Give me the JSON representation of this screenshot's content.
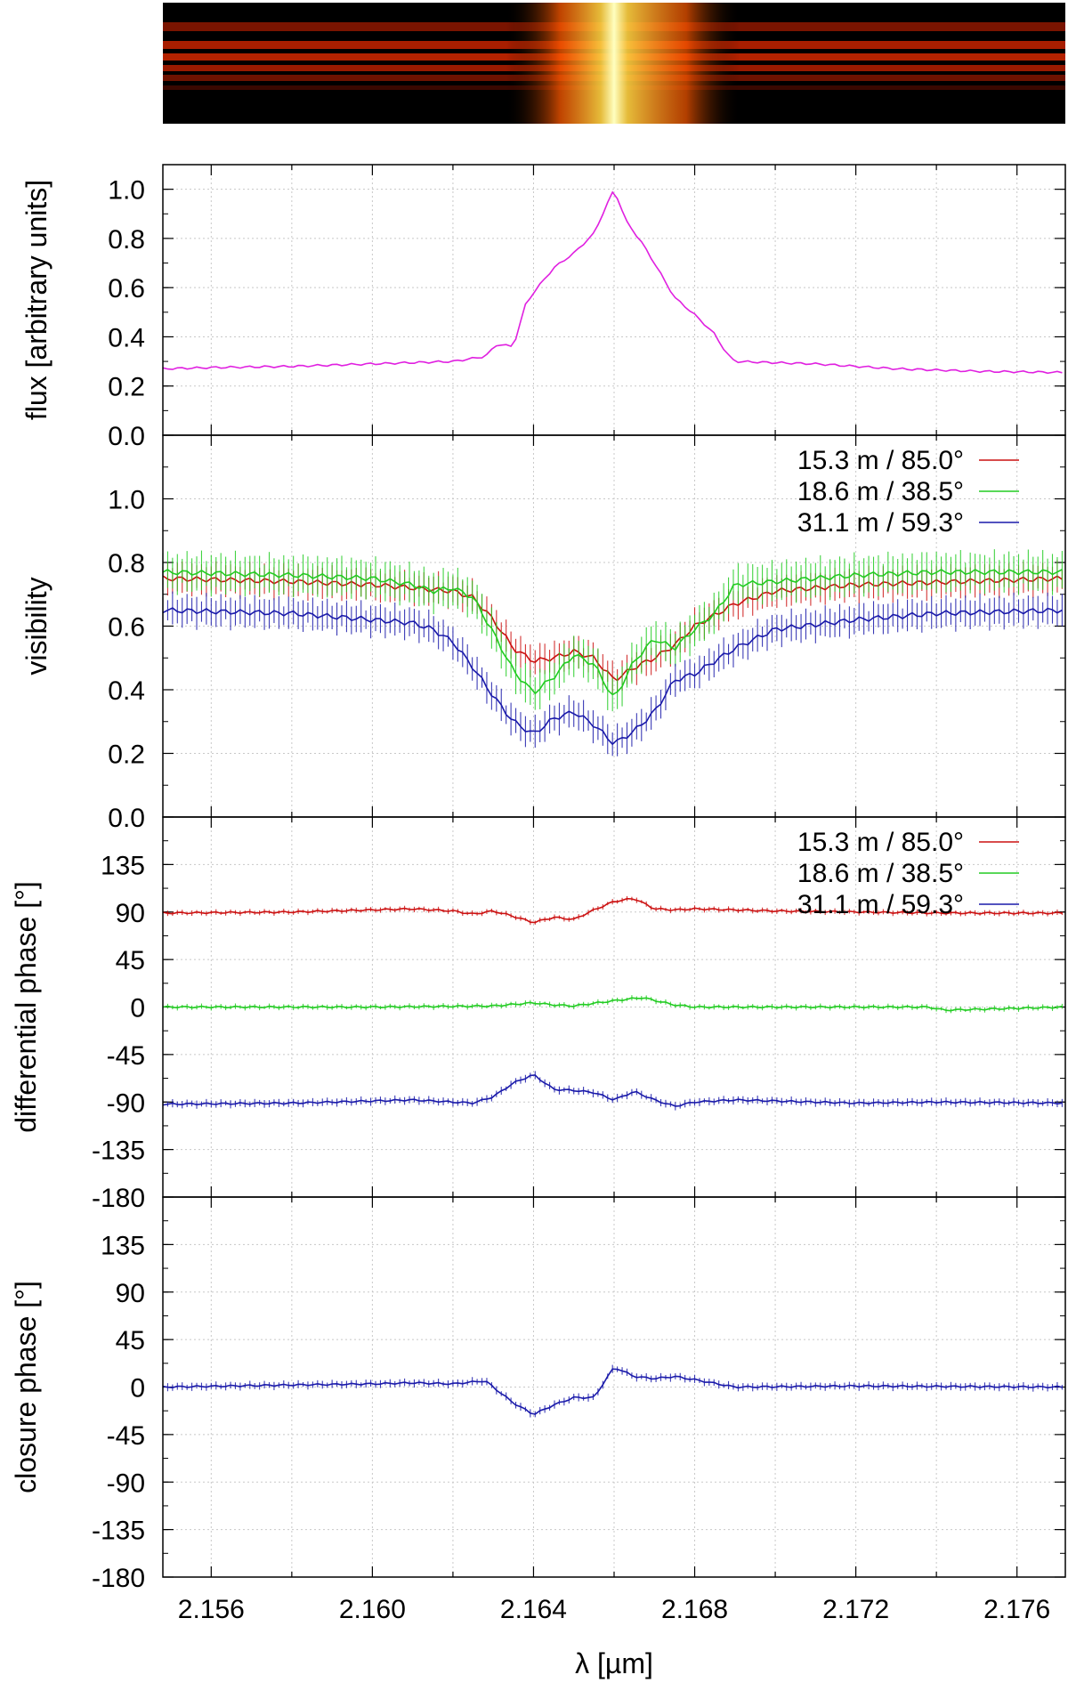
{
  "chart_data": [
    {
      "type": "heatmap",
      "description_colormap": "black-red-yellow-white",
      "peak_x": 2.166,
      "xlim": [
        2.1548,
        2.1772
      ]
    },
    {
      "type": "line",
      "panel": "flux",
      "ylabel": "flux [arbitrary units]",
      "ylim": [
        0.0,
        1.1
      ],
      "yticks": [
        "0.0",
        "0.2",
        "0.4",
        "0.6",
        "0.8",
        "1.0"
      ],
      "xlim": [
        2.1548,
        2.1772
      ],
      "grid": true,
      "series": [
        {
          "color": "#e020e0",
          "x": [
            2.1548,
            2.156,
            2.158,
            2.16,
            2.162,
            2.1628,
            2.1631,
            2.1635,
            2.1638,
            2.164,
            2.1645,
            2.165,
            2.1655,
            2.1658,
            2.166,
            2.1663,
            2.1667,
            2.167,
            2.1675,
            2.168,
            2.1685,
            2.1688,
            2.169,
            2.171,
            2.173,
            2.175,
            2.1772
          ],
          "values": [
            0.27,
            0.275,
            0.28,
            0.29,
            0.3,
            0.32,
            0.37,
            0.36,
            0.53,
            0.58,
            0.68,
            0.74,
            0.82,
            0.93,
            1.0,
            0.87,
            0.78,
            0.7,
            0.56,
            0.49,
            0.41,
            0.33,
            0.3,
            0.29,
            0.27,
            0.26,
            0.255
          ]
        }
      ]
    },
    {
      "type": "line",
      "panel": "visibility",
      "ylabel": "visibility",
      "ylim": [
        0.0,
        1.2
      ],
      "yticks": [
        "0.0",
        "0.2",
        "0.4",
        "0.6",
        "0.8",
        "1.0"
      ],
      "xlim": [
        2.1548,
        2.1772
      ],
      "legend": "top-right",
      "grid": true,
      "series": [
        {
          "name": "15.3 m / 85.0°",
          "color": "#cc1111",
          "x": [
            2.1548,
            2.158,
            2.16,
            2.161,
            2.162,
            2.1625,
            2.163,
            2.1635,
            2.164,
            2.1645,
            2.165,
            2.1655,
            2.166,
            2.1665,
            2.167,
            2.1675,
            2.168,
            2.169,
            2.17,
            2.172,
            2.1772
          ],
          "values": [
            0.75,
            0.74,
            0.73,
            0.72,
            0.71,
            0.69,
            0.62,
            0.53,
            0.49,
            0.5,
            0.52,
            0.5,
            0.43,
            0.47,
            0.5,
            0.54,
            0.6,
            0.67,
            0.71,
            0.73,
            0.75
          ],
          "err": 0.04
        },
        {
          "name": "18.6 m / 38.5°",
          "color": "#22cc22",
          "x": [
            2.1548,
            2.158,
            2.16,
            2.161,
            2.1615,
            2.162,
            2.1625,
            2.163,
            2.1635,
            2.164,
            2.1645,
            2.165,
            2.1655,
            2.166,
            2.1665,
            2.167,
            2.1675,
            2.168,
            2.1685,
            2.169,
            2.17,
            2.172,
            2.174,
            2.1772
          ],
          "values": [
            0.77,
            0.76,
            0.75,
            0.73,
            0.71,
            0.72,
            0.69,
            0.58,
            0.46,
            0.39,
            0.44,
            0.51,
            0.48,
            0.37,
            0.49,
            0.56,
            0.53,
            0.59,
            0.64,
            0.73,
            0.74,
            0.76,
            0.77,
            0.77
          ],
          "err": 0.05
        },
        {
          "name": "31.1 m / 59.3°",
          "color": "#1a1aaa",
          "x": [
            2.1548,
            2.158,
            2.16,
            2.161,
            2.1615,
            2.162,
            2.1625,
            2.163,
            2.1635,
            2.164,
            2.1645,
            2.165,
            2.1655,
            2.166,
            2.1665,
            2.167,
            2.1675,
            2.168,
            2.169,
            2.17,
            2.172,
            2.174,
            2.1772
          ],
          "values": [
            0.65,
            0.64,
            0.62,
            0.61,
            0.59,
            0.55,
            0.47,
            0.38,
            0.3,
            0.26,
            0.31,
            0.33,
            0.29,
            0.23,
            0.27,
            0.33,
            0.43,
            0.45,
            0.53,
            0.59,
            0.62,
            0.64,
            0.65
          ],
          "err": 0.04
        }
      ]
    },
    {
      "type": "line",
      "panel": "differential phase",
      "ylabel": "differential phase [°]",
      "ylim": [
        -180,
        180
      ],
      "yticks": [
        "-180",
        "-135",
        "-90",
        "-45",
        "0",
        "45",
        "90",
        "135"
      ],
      "xlim": [
        2.1548,
        2.1772
      ],
      "legend": "top-right",
      "grid": true,
      "series": [
        {
          "name": "15.3 m / 85.0°",
          "color": "#cc1111",
          "x": [
            2.1548,
            2.158,
            2.16,
            2.161,
            2.162,
            2.1625,
            2.163,
            2.1635,
            2.164,
            2.1645,
            2.165,
            2.1655,
            2.166,
            2.1665,
            2.167,
            2.1675,
            2.168,
            2.17,
            2.174,
            2.1772
          ],
          "values": [
            89,
            90,
            92,
            93,
            91,
            88,
            91,
            86,
            80,
            85,
            83,
            92,
            100,
            103,
            93,
            92,
            93,
            91,
            89,
            89
          ],
          "err": 2
        },
        {
          "name": "18.6 m / 38.5°",
          "color": "#22cc22",
          "x": [
            2.1548,
            2.16,
            2.163,
            2.164,
            2.1645,
            2.165,
            2.166,
            2.1667,
            2.1675,
            2.168,
            2.1738,
            2.1742,
            2.1772
          ],
          "values": [
            0,
            0,
            1,
            4,
            2,
            1,
            6,
            9,
            2,
            0,
            0,
            -3,
            0
          ],
          "err": 2
        },
        {
          "name": "31.1 m / 59.3°",
          "color": "#1a1aaa",
          "x": [
            2.1548,
            2.158,
            2.16,
            2.161,
            2.162,
            2.1625,
            2.163,
            2.1635,
            2.164,
            2.1645,
            2.165,
            2.1655,
            2.166,
            2.1665,
            2.167,
            2.1675,
            2.168,
            2.169,
            2.172,
            2.174,
            2.1772
          ],
          "values": [
            -92,
            -91,
            -89,
            -88,
            -90,
            -91,
            -85,
            -72,
            -64,
            -78,
            -79,
            -81,
            -88,
            -80,
            -88,
            -94,
            -90,
            -88,
            -91,
            -90,
            -91
          ],
          "err": 3
        }
      ]
    },
    {
      "type": "line",
      "panel": "closure phase",
      "ylabel": "closure phase [°]",
      "xlabel": "λ [µm]",
      "ylim": [
        -180,
        180
      ],
      "yticks": [
        "-180",
        "-135",
        "-90",
        "-45",
        "0",
        "45",
        "90",
        "135"
      ],
      "xticks": [
        "2.156",
        "2.160",
        "2.164",
        "2.168",
        "2.172",
        "2.176"
      ],
      "xlim": [
        2.1548,
        2.1772
      ],
      "grid": true,
      "series": [
        {
          "color": "#1a1aaa",
          "x": [
            2.1548,
            2.158,
            2.16,
            2.161,
            2.162,
            2.1628,
            2.1635,
            2.164,
            2.1645,
            2.165,
            2.1655,
            2.166,
            2.1665,
            2.167,
            2.1675,
            2.168,
            2.169,
            2.172,
            2.1772
          ],
          "values": [
            0,
            2,
            3,
            4,
            3,
            6,
            -15,
            -26,
            -17,
            -10,
            -10,
            19,
            10,
            8,
            10,
            7,
            0,
            1,
            0
          ],
          "err": 3
        }
      ]
    }
  ]
}
